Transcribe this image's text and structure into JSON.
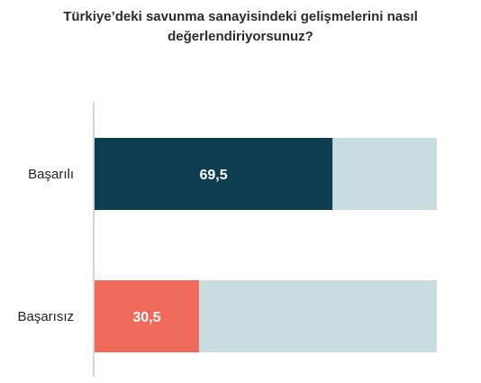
{
  "chart_data": {
    "type": "bar",
    "orientation": "horizontal",
    "stacked_to_100": true,
    "title_lines": [
      "Türkiye’deki savunma sanayisindeki gelişmelerini nasıl",
      "değerlendiriyorsunuz?"
    ],
    "categories": [
      "Başarılı",
      "Başarısız"
    ],
    "values": [
      69.5,
      30.5
    ],
    "value_labels": [
      "69,5",
      "30,5"
    ],
    "bar_colors": [
      "#0d3d4e",
      "#ef6a5a"
    ],
    "track_color": "#c9dcdf",
    "axis_color": "#d5d5d5",
    "xlim": [
      0,
      100
    ],
    "grid": false,
    "legend": "none"
  }
}
